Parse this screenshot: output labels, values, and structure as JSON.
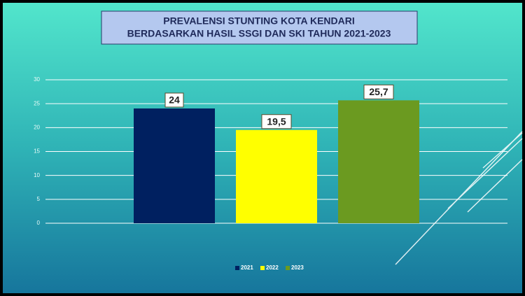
{
  "chart_data": {
    "type": "bar",
    "title": "PREVALENSI STUNTING KOTA KENDARI",
    "subtitle": "BERDASARKAN HASIL SSGI DAN SKI TAHUN 2021-2023",
    "categories": [
      null
    ],
    "series": [
      {
        "name": "2021",
        "color": "#002060",
        "values": [
          24
        ],
        "value_labels": [
          "24"
        ]
      },
      {
        "name": "2022",
        "color": "#ffff00",
        "values": [
          19.5
        ],
        "value_labels": [
          "19,5"
        ]
      },
      {
        "name": "2023",
        "color": "#6b9a20",
        "values": [
          25.7
        ],
        "value_labels": [
          "25,7"
        ]
      }
    ],
    "ylim": [
      0,
      30
    ],
    "yticks": [
      0,
      5,
      10,
      15,
      20,
      25,
      30
    ],
    "grid": true,
    "legend": "bottom"
  }
}
